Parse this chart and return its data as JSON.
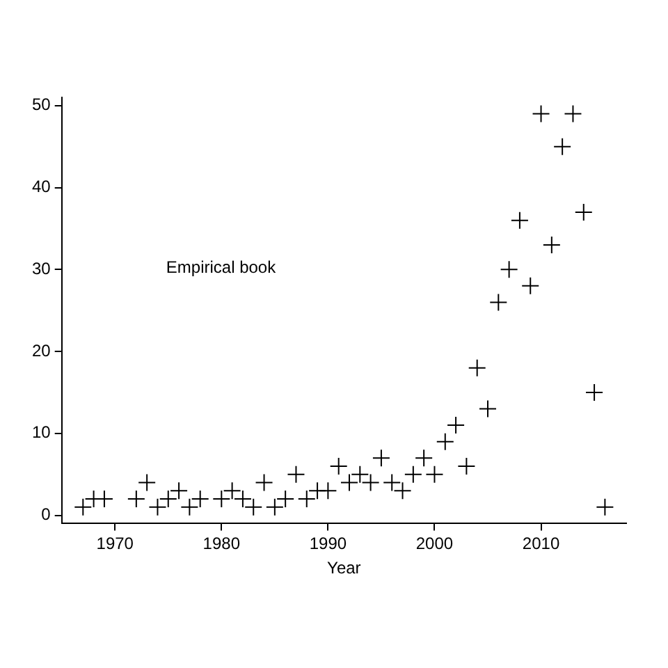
{
  "chart_data": {
    "type": "scatter",
    "xlabel": "Year",
    "x": [
      1967,
      1968,
      1969,
      1972,
      1973,
      1974,
      1975,
      1976,
      1977,
      1978,
      1980,
      1981,
      1982,
      1983,
      1984,
      1985,
      1986,
      1987,
      1988,
      1989,
      1990,
      1991,
      1992,
      1993,
      1994,
      1995,
      1996,
      1997,
      1998,
      1999,
      2000,
      2001,
      2002,
      2003,
      2004,
      2005,
      2006,
      2007,
      2008,
      2009,
      2010,
      2011,
      2012,
      2013,
      2014,
      2015,
      2016
    ],
    "series": [
      {
        "color": "#000000",
        "values": [
          1,
          2,
          2,
          2,
          4,
          1,
          2,
          3,
          1,
          2,
          2,
          3,
          2,
          1,
          4,
          1,
          2,
          5,
          2,
          3,
          3,
          6,
          4,
          5,
          4,
          7,
          4,
          3,
          5,
          7,
          5,
          9,
          11,
          6,
          18,
          13,
          26,
          30,
          36,
          28,
          49,
          33,
          45,
          49,
          37,
          15,
          1
        ]
      }
    ],
    "xlim": [
      1965,
      2018
    ],
    "xticks": [
      1970,
      1980,
      1990,
      2000,
      2010
    ],
    "ylim": [
      -1,
      51
    ],
    "yticks": [
      0,
      10,
      20,
      30,
      40,
      50
    ],
    "annotations": [
      "Empirical book"
    ],
    "marker": "cross",
    "grid": false,
    "legend": false
  }
}
